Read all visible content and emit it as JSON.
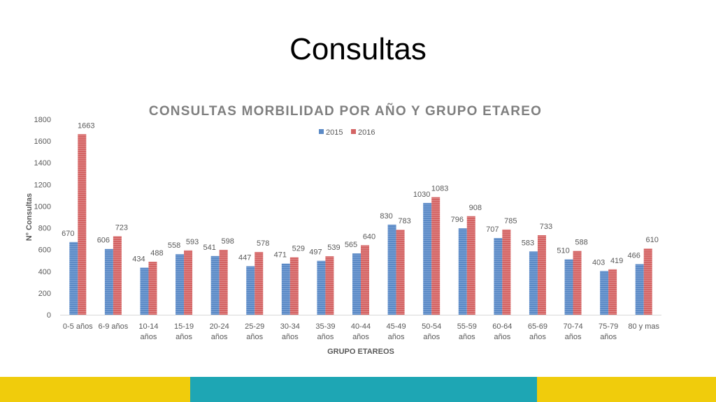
{
  "slide": {
    "title": "Consultas"
  },
  "colors": {
    "series_2015": "#5b8ac6",
    "series_2016": "#d46464",
    "text": "#595959",
    "title": "#7f7f7f",
    "bar_yellow": "#f0cc0c",
    "bar_teal": "#1ea6b4"
  },
  "chart_data": {
    "type": "bar",
    "title": "CONSULTAS MORBILIDAD POR AÑO Y GRUPO ETAREO",
    "xlabel": "GRUPO ETAREOS",
    "ylabel": "N° Consultas",
    "ylim": [
      0,
      1800
    ],
    "yticks": [
      0,
      200,
      400,
      600,
      800,
      1000,
      1200,
      1400,
      1600,
      1800
    ],
    "grid": false,
    "legend": "top-center",
    "categories": [
      [
        "0-5 años"
      ],
      [
        "6-9 años"
      ],
      [
        "10-14",
        "años"
      ],
      [
        "15-19",
        "años"
      ],
      [
        "20-24",
        "años"
      ],
      [
        "25-29",
        "años"
      ],
      [
        "30-34",
        "años"
      ],
      [
        "35-39",
        "años"
      ],
      [
        "40-44",
        "años"
      ],
      [
        "45-49",
        "años"
      ],
      [
        "50-54",
        "años"
      ],
      [
        "55-59",
        "años"
      ],
      [
        "60-64",
        "años"
      ],
      [
        "65-69",
        "años"
      ],
      [
        "70-74",
        "años"
      ],
      [
        "75-79",
        "años"
      ],
      [
        "80 y mas"
      ]
    ],
    "series": [
      {
        "name": "2015",
        "values": [
          670,
          606,
          434,
          558,
          541,
          447,
          471,
          497,
          565,
          830,
          1030,
          796,
          707,
          583,
          510,
          403,
          466
        ]
      },
      {
        "name": "2016",
        "values": [
          1663,
          723,
          488,
          593,
          598,
          578,
          529,
          539,
          640,
          783,
          1083,
          908,
          785,
          733,
          588,
          419,
          610
        ]
      }
    ]
  }
}
